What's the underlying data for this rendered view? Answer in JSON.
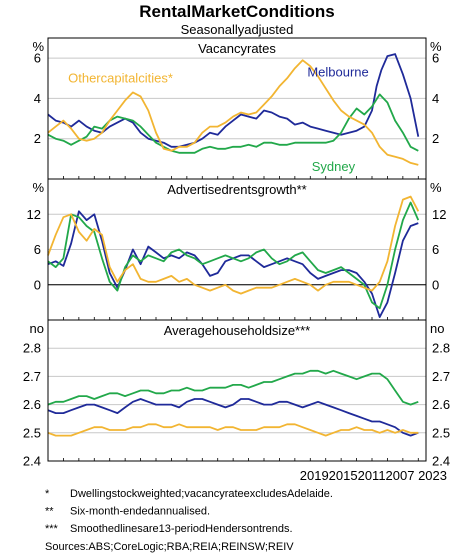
{
  "title": "RentalMarketConditions",
  "subtitle": "Seasonallyadjusted",
  "colors": {
    "melbourne": "#1f2a99",
    "sydney": "#22a84a",
    "other": "#f2b532",
    "raw": "#8fb0d8",
    "grid": "#c8c8c8",
    "axis": "#000000"
  },
  "xaxis": {
    "min": 1999,
    "max": 2023.5,
    "tick_label_text": "2019201520112007 2023",
    "tick_label_display": "2019201520112007 2023"
  },
  "notes": [
    {
      "mark": "*",
      "text": "Dwellingstockweighted;vacancyrateexcludesAdelaide."
    },
    {
      "mark": "**",
      "text": "Six-month-endedannualised."
    },
    {
      "mark": "***",
      "text": "Smoothedlinesare13-periodHendersontrends."
    }
  ],
  "sources": "Sources:ABS;CoreLogic;RBA;REIA;REINSW;REIV",
  "chart_data": [
    {
      "type": "line",
      "title": "Vacancyrates",
      "unit": "%",
      "ylim": [
        0,
        7
      ],
      "yticks": [
        2,
        4,
        6
      ],
      "grid": true,
      "series": [
        {
          "name": "Melbourne",
          "key": "melbourne",
          "x": [
            1999,
            1999.5,
            2000,
            2000.5,
            2001,
            2001.5,
            2002,
            2002.5,
            2003,
            2003.5,
            2004,
            2004.5,
            2005,
            2005.5,
            2006,
            2006.5,
            2007,
            2007.5,
            2008,
            2008.5,
            2009,
            2009.5,
            2010,
            2010.5,
            2011,
            2011.5,
            2012,
            2012.5,
            2013,
            2013.5,
            2014,
            2014.5,
            2015,
            2015.5,
            2016,
            2016.5,
            2017,
            2017.5,
            2018,
            2018.5,
            2019,
            2019.5,
            2020,
            2020.3,
            2020.6,
            2021,
            2021.5,
            2022,
            2022.5,
            2023
          ],
          "y": [
            3.2,
            2.9,
            2.8,
            2.6,
            2.9,
            2.6,
            2.4,
            2.3,
            2.6,
            2.8,
            3.0,
            2.8,
            2.3,
            2.0,
            1.9,
            1.8,
            1.6,
            1.6,
            1.7,
            1.8,
            2.0,
            2.3,
            2.2,
            2.6,
            2.9,
            3.2,
            3.1,
            3.0,
            3.4,
            3.3,
            3.1,
            3.0,
            2.7,
            2.8,
            2.6,
            2.5,
            2.4,
            2.3,
            2.2,
            2.3,
            2.4,
            2.6,
            3.4,
            4.6,
            5.4,
            6.1,
            6.2,
            5.2,
            4.0,
            2.1
          ]
        },
        {
          "name": "Sydney",
          "key": "sydney",
          "x": [
            1999,
            1999.5,
            2000,
            2000.5,
            2001,
            2001.5,
            2002,
            2002.5,
            2003,
            2003.5,
            2004,
            2004.5,
            2005,
            2005.5,
            2006,
            2006.5,
            2007,
            2007.5,
            2008,
            2008.5,
            2009,
            2009.5,
            2010,
            2010.5,
            2011,
            2011.5,
            2012,
            2012.5,
            2013,
            2013.5,
            2014,
            2014.5,
            2015,
            2015.5,
            2016,
            2016.5,
            2017,
            2017.5,
            2018,
            2018.5,
            2019,
            2019.5,
            2020,
            2020.5,
            2021,
            2021.5,
            2022,
            2022.5,
            2023
          ],
          "y": [
            2.2,
            2.0,
            1.9,
            1.7,
            1.9,
            2.1,
            2.6,
            2.5,
            2.9,
            3.1,
            3.0,
            2.9,
            2.6,
            2.2,
            1.8,
            1.6,
            1.4,
            1.3,
            1.3,
            1.3,
            1.5,
            1.6,
            1.5,
            1.5,
            1.6,
            1.6,
            1.7,
            1.6,
            1.8,
            1.8,
            1.7,
            1.7,
            1.8,
            1.8,
            1.8,
            1.8,
            1.8,
            1.9,
            2.3,
            3.0,
            3.5,
            3.2,
            3.6,
            4.2,
            3.8,
            2.9,
            2.3,
            1.6,
            1.4
          ]
        },
        {
          "name": "Othercapitalcities*",
          "key": "other",
          "x": [
            1999,
            1999.5,
            2000,
            2000.5,
            2001,
            2001.5,
            2002,
            2002.5,
            2003,
            2003.5,
            2004,
            2004.5,
            2005,
            2005.5,
            2006,
            2006.5,
            2007,
            2007.5,
            2008,
            2008.5,
            2009,
            2009.5,
            2010,
            2010.5,
            2011,
            2011.5,
            2012,
            2012.5,
            2013,
            2013.5,
            2014,
            2014.5,
            2015,
            2015.5,
            2016,
            2016.5,
            2017,
            2017.5,
            2018,
            2018.5,
            2019,
            2019.5,
            2020,
            2020.5,
            2021,
            2021.5,
            2022,
            2022.5,
            2023
          ],
          "y": [
            2.3,
            2.6,
            2.9,
            2.5,
            2.0,
            1.9,
            2.0,
            2.3,
            2.9,
            3.4,
            3.9,
            4.3,
            4.1,
            3.4,
            2.3,
            1.5,
            1.4,
            1.6,
            1.6,
            1.8,
            2.3,
            2.6,
            2.6,
            2.8,
            3.1,
            3.3,
            3.2,
            3.3,
            3.7,
            4.1,
            4.6,
            5.0,
            5.5,
            5.9,
            5.6,
            5.1,
            4.5,
            3.9,
            3.4,
            3.1,
            2.9,
            2.7,
            2.3,
            1.6,
            1.2,
            1.1,
            1.0,
            0.8,
            0.7
          ]
        }
      ],
      "labels": [
        {
          "text": "Othercapitalcities*",
          "key": "other",
          "x": 2003.7,
          "y": 4.8
        },
        {
          "text": "Melbourne",
          "key": "melbourne",
          "x": 2017.8,
          "y": 5.1
        },
        {
          "text": "Sydney",
          "key": "sydney",
          "x": 2017.5,
          "y": 0.4
        }
      ]
    },
    {
      "type": "line",
      "title": "Advertisedrentsgrowth**",
      "unit": "%",
      "ylim": [
        -6,
        18
      ],
      "yticks": [
        0,
        6,
        12
      ],
      "zero_line": true,
      "grid": true,
      "series": [
        {
          "name": "Melbourne",
          "key": "melbourne",
          "x": [
            1999,
            1999.5,
            2000,
            2000.5,
            2001,
            2001.5,
            2002,
            2002.5,
            2003,
            2003.5,
            2004,
            2004.5,
            2005,
            2005.5,
            2006,
            2006.5,
            2007,
            2007.5,
            2008,
            2008.5,
            2009,
            2009.5,
            2010,
            2010.5,
            2011,
            2011.5,
            2012,
            2012.5,
            2013,
            2013.5,
            2014,
            2014.5,
            2015,
            2015.5,
            2016,
            2016.5,
            2017,
            2017.5,
            2018,
            2018.5,
            2019,
            2019.5,
            2020,
            2020.5,
            2021,
            2021.5,
            2022,
            2022.5,
            2023
          ],
          "y": [
            3.5,
            4.0,
            3.2,
            7.0,
            12.5,
            11.0,
            12.0,
            7.5,
            2.0,
            -0.5,
            2.5,
            6.0,
            3.5,
            6.5,
            5.5,
            4.5,
            5.0,
            4.5,
            5.5,
            5.0,
            3.5,
            1.5,
            2.0,
            4.0,
            4.5,
            5.0,
            5.0,
            4.0,
            3.0,
            3.5,
            4.0,
            4.5,
            4.0,
            3.5,
            2.0,
            1.0,
            1.5,
            2.0,
            2.5,
            2.5,
            2.0,
            0.5,
            -1.5,
            -5.5,
            -3.0,
            2.0,
            7.5,
            10.0,
            10.5
          ]
        },
        {
          "name": "Sydney",
          "key": "sydney",
          "x": [
            1999,
            1999.5,
            2000,
            2000.5,
            2001,
            2001.5,
            2002,
            2002.5,
            2003,
            2003.5,
            2004,
            2004.5,
            2005,
            2005.5,
            2006,
            2006.5,
            2007,
            2007.5,
            2008,
            2008.5,
            2009,
            2009.5,
            2010,
            2010.5,
            2011,
            2011.5,
            2012,
            2012.5,
            2013,
            2013.5,
            2014,
            2014.5,
            2015,
            2015.5,
            2016,
            2016.5,
            2017,
            2017.5,
            2018,
            2018.5,
            2019,
            2019.5,
            2020,
            2020.5,
            2021,
            2021.5,
            2022,
            2022.5,
            2023
          ],
          "y": [
            4.0,
            3.0,
            4.5,
            12.0,
            11.5,
            10.0,
            9.0,
            4.5,
            0.5,
            -1.0,
            3.0,
            5.0,
            4.0,
            5.0,
            4.5,
            4.0,
            5.5,
            6.0,
            5.0,
            4.5,
            3.5,
            4.0,
            4.5,
            5.0,
            4.5,
            4.0,
            4.5,
            5.5,
            6.0,
            4.5,
            3.5,
            4.0,
            5.0,
            5.5,
            4.0,
            2.5,
            2.0,
            2.5,
            3.0,
            2.0,
            1.0,
            0.0,
            -3.0,
            -4.0,
            0.0,
            6.0,
            11.0,
            14.0,
            11.0
          ]
        },
        {
          "name": "Othercapitalcities*",
          "key": "other",
          "x": [
            1999,
            1999.5,
            2000,
            2000.5,
            2001,
            2001.5,
            2002,
            2002.5,
            2003,
            2003.5,
            2004,
            2004.5,
            2005,
            2005.5,
            2006,
            2006.5,
            2007,
            2007.5,
            2008,
            2008.5,
            2009,
            2009.5,
            2010,
            2010.5,
            2011,
            2011.5,
            2012,
            2012.5,
            2013,
            2013.5,
            2014,
            2014.5,
            2015,
            2015.5,
            2016,
            2016.5,
            2017,
            2017.5,
            2018,
            2018.5,
            2019,
            2019.5,
            2020,
            2020.5,
            2021,
            2021.5,
            2022,
            2022.5,
            2023
          ],
          "y": [
            5.0,
            8.5,
            11.5,
            12.0,
            9.0,
            7.5,
            9.5,
            8.5,
            3.0,
            0.5,
            2.5,
            3.5,
            1.0,
            0.5,
            0.5,
            1.0,
            1.5,
            0.5,
            1.0,
            0.0,
            -0.5,
            -1.0,
            -0.5,
            0.0,
            -1.0,
            -1.5,
            -1.0,
            -0.5,
            -0.5,
            -0.5,
            0.0,
            0.5,
            1.0,
            0.5,
            0.0,
            -1.0,
            0.0,
            0.5,
            0.5,
            0.5,
            0.0,
            -0.5,
            -1.0,
            0.5,
            4.0,
            10.0,
            14.5,
            15.0,
            12.5
          ]
        }
      ]
    },
    {
      "type": "line",
      "title": "Averagehouseholdsize***",
      "unit": "no",
      "ylim": [
        2.4,
        2.9
      ],
      "yticks": [
        2.4,
        2.5,
        2.6,
        2.7,
        2.8
      ],
      "grid": true,
      "series": [
        {
          "name": "Melbourne",
          "key": "melbourne",
          "x": [
            1999,
            1999.5,
            2000,
            2000.5,
            2001,
            2001.5,
            2002,
            2002.5,
            2003,
            2003.5,
            2004,
            2004.5,
            2005,
            2005.5,
            2006,
            2006.5,
            2007,
            2007.5,
            2008,
            2008.5,
            2009,
            2009.5,
            2010,
            2010.5,
            2011,
            2011.5,
            2012,
            2012.5,
            2013,
            2013.5,
            2014,
            2014.5,
            2015,
            2015.5,
            2016,
            2016.5,
            2017,
            2017.5,
            2018,
            2018.5,
            2019,
            2019.5,
            2020,
            2020.5,
            2021,
            2021.5,
            2022,
            2022.5,
            2023
          ],
          "y": [
            2.58,
            2.57,
            2.57,
            2.58,
            2.59,
            2.6,
            2.6,
            2.59,
            2.58,
            2.57,
            2.59,
            2.61,
            2.62,
            2.61,
            2.6,
            2.6,
            2.6,
            2.59,
            2.61,
            2.62,
            2.62,
            2.61,
            2.6,
            2.59,
            2.6,
            2.62,
            2.62,
            2.61,
            2.6,
            2.6,
            2.61,
            2.61,
            2.6,
            2.59,
            2.6,
            2.61,
            2.6,
            2.59,
            2.58,
            2.57,
            2.56,
            2.55,
            2.54,
            2.54,
            2.53,
            2.52,
            2.5,
            2.49,
            2.5
          ]
        },
        {
          "name": "Sydney",
          "key": "sydney",
          "x": [
            1999,
            1999.5,
            2000,
            2000.5,
            2001,
            2001.5,
            2002,
            2002.5,
            2003,
            2003.5,
            2004,
            2004.5,
            2005,
            2005.5,
            2006,
            2006.5,
            2007,
            2007.5,
            2008,
            2008.5,
            2009,
            2009.5,
            2010,
            2010.5,
            2011,
            2011.5,
            2012,
            2012.5,
            2013,
            2013.5,
            2014,
            2014.5,
            2015,
            2015.5,
            2016,
            2016.5,
            2017,
            2017.5,
            2018,
            2018.5,
            2019,
            2019.5,
            2020,
            2020.5,
            2021,
            2021.5,
            2022,
            2022.5,
            2023
          ],
          "y": [
            2.6,
            2.61,
            2.61,
            2.62,
            2.63,
            2.63,
            2.62,
            2.63,
            2.64,
            2.64,
            2.63,
            2.64,
            2.65,
            2.65,
            2.64,
            2.64,
            2.65,
            2.65,
            2.66,
            2.65,
            2.65,
            2.66,
            2.66,
            2.66,
            2.67,
            2.67,
            2.66,
            2.67,
            2.68,
            2.68,
            2.69,
            2.7,
            2.71,
            2.71,
            2.72,
            2.72,
            2.71,
            2.72,
            2.71,
            2.7,
            2.69,
            2.7,
            2.71,
            2.71,
            2.69,
            2.65,
            2.61,
            2.6,
            2.61
          ]
        },
        {
          "name": "Othercapitalcities*",
          "key": "other",
          "x": [
            1999,
            1999.5,
            2000,
            2000.5,
            2001,
            2001.5,
            2002,
            2002.5,
            2003,
            2003.5,
            2004,
            2004.5,
            2005,
            2005.5,
            2006,
            2006.5,
            2007,
            2007.5,
            2008,
            2008.5,
            2009,
            2009.5,
            2010,
            2010.5,
            2011,
            2011.5,
            2012,
            2012.5,
            2013,
            2013.5,
            2014,
            2014.5,
            2015,
            2015.5,
            2016,
            2016.5,
            2017,
            2017.5,
            2018,
            2018.5,
            2019,
            2019.5,
            2020,
            2020.5,
            2021,
            2021.5,
            2022,
            2022.5,
            2023
          ],
          "y": [
            2.5,
            2.49,
            2.49,
            2.49,
            2.5,
            2.51,
            2.52,
            2.52,
            2.51,
            2.51,
            2.51,
            2.52,
            2.52,
            2.53,
            2.53,
            2.52,
            2.52,
            2.53,
            2.52,
            2.52,
            2.52,
            2.52,
            2.51,
            2.52,
            2.52,
            2.51,
            2.51,
            2.51,
            2.52,
            2.52,
            2.52,
            2.53,
            2.53,
            2.52,
            2.51,
            2.5,
            2.49,
            2.5,
            2.51,
            2.51,
            2.52,
            2.51,
            2.51,
            2.5,
            2.51,
            2.5,
            2.51,
            2.5,
            2.5
          ]
        }
      ]
    }
  ]
}
